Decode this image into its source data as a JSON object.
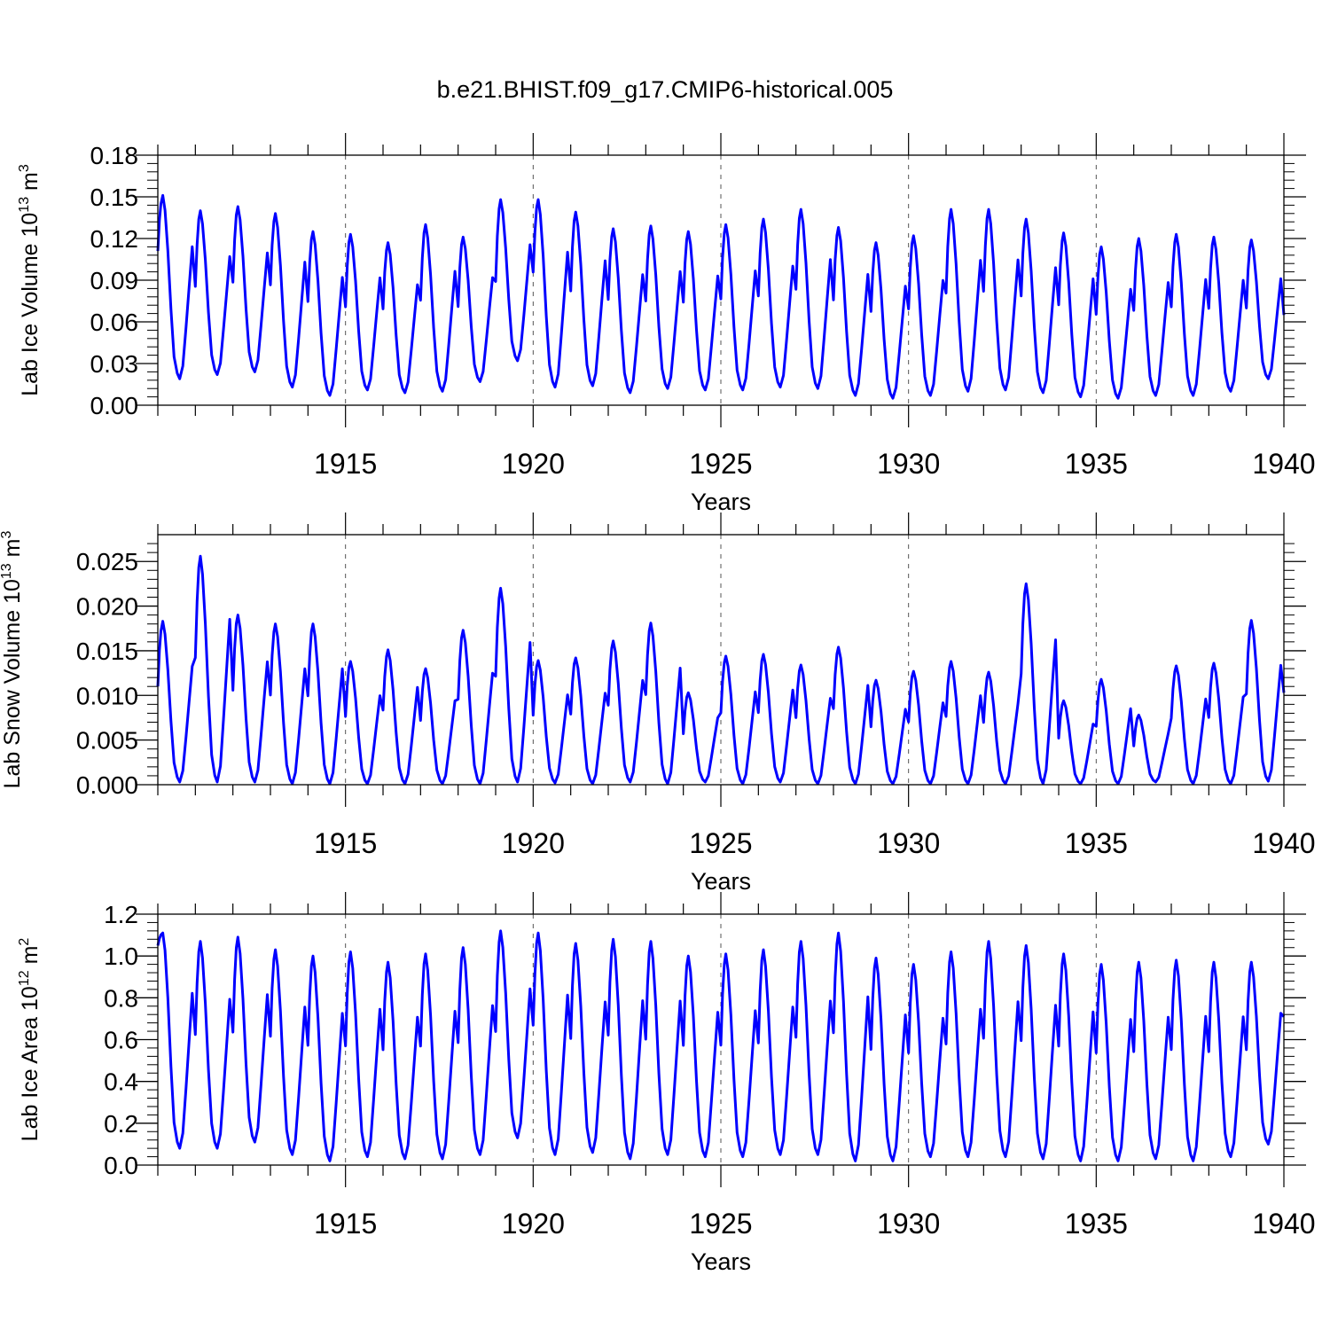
{
  "title": "b.e21.BHIST.f09_g17.CMIP6-historical.005",
  "chart_data": [
    {
      "type": "line",
      "ylabel": "Lab Ice Volume 10",
      "ylabel_exp": "13",
      "ylabel_unit": " m",
      "ylabel_unit_exp": "3",
      "xlabel": "Years",
      "xlim": [
        1910.0,
        1940.0
      ],
      "ylim": [
        0.0,
        0.18
      ],
      "yticks": [
        0.0,
        0.03,
        0.06,
        0.09,
        0.12,
        0.15,
        0.18
      ],
      "ytick_labels": [
        "0.00",
        "0.03",
        "0.06",
        "0.09",
        "0.12",
        "0.15",
        "0.18"
      ],
      "xticks": [
        1915,
        1920,
        1925,
        1930,
        1935,
        1940
      ],
      "xtick_labels": [
        "1915",
        "1920",
        "1925",
        "1930",
        "1935",
        "1940"
      ],
      "color": "#0000ff",
      "peaks": [
        0.151,
        0.14,
        0.143,
        0.138,
        0.125,
        0.123,
        0.117,
        0.13,
        0.121,
        0.148,
        0.148,
        0.139,
        0.127,
        0.129,
        0.125,
        0.13,
        0.134,
        0.141,
        0.128,
        0.117,
        0.122,
        0.141,
        0.141,
        0.134,
        0.124,
        0.114,
        0.12,
        0.123,
        0.121,
        0.119
      ],
      "troughs": [
        0.019,
        0.022,
        0.024,
        0.013,
        0.007,
        0.011,
        0.009,
        0.01,
        0.017,
        0.032,
        0.013,
        0.014,
        0.009,
        0.012,
        0.011,
        0.011,
        0.013,
        0.012,
        0.007,
        0.005,
        0.007,
        0.01,
        0.011,
        0.009,
        0.006,
        0.005,
        0.007,
        0.007,
        0.01,
        0.019
      ],
      "start_value": 0.111,
      "end_value": 0.065,
      "grid": "vertical dashed at major x ticks"
    },
    {
      "type": "line",
      "ylabel": "Lab Snow Volume 10",
      "ylabel_exp": "13",
      "ylabel_unit": " m",
      "ylabel_unit_exp": "3",
      "xlabel": "Years",
      "xlim": [
        1910.0,
        1940.0
      ],
      "ylim": [
        0.0,
        0.028
      ],
      "yticks": [
        0.0,
        0.005,
        0.01,
        0.015,
        0.02,
        0.025
      ],
      "ytick_labels": [
        "0.000",
        "0.005",
        "0.010",
        "0.015",
        "0.020",
        "0.025"
      ],
      "xticks": [
        1915,
        1920,
        1925,
        1930,
        1935,
        1940
      ],
      "xtick_labels": [
        "1915",
        "1920",
        "1925",
        "1930",
        "1935",
        "1940"
      ],
      "color": "#0000ff",
      "peaks": [
        0.0183,
        0.0256,
        0.019,
        0.018,
        0.018,
        0.0138,
        0.0151,
        0.013,
        0.0173,
        0.022,
        0.0139,
        0.0142,
        0.0161,
        0.0181,
        0.0103,
        0.0144,
        0.0146,
        0.0134,
        0.0154,
        0.0117,
        0.0127,
        0.0138,
        0.0126,
        0.0225,
        0.0094,
        0.0118,
        0.0078,
        0.0133,
        0.0136,
        0.0184
      ],
      "troughs": [
        0.0003,
        0.0003,
        0.0003,
        0.0001,
        0.0001,
        0.0001,
        0.0001,
        0.0001,
        0.0001,
        0.0003,
        0.0002,
        0.0001,
        0.0003,
        0.0001,
        0.0003,
        0.0001,
        0.0003,
        0.0001,
        0.0001,
        0.0001,
        0.0001,
        0.0001,
        0.0001,
        0.0001,
        0.0001,
        0.0001,
        0.0003,
        0.0001,
        0.0001,
        0.0004
      ],
      "start_value": 0.011,
      "end_value": 0.0103,
      "grid": "vertical dashed at major x ticks"
    },
    {
      "type": "line",
      "ylabel": "Lab Ice Area 10",
      "ylabel_exp": "12",
      "ylabel_unit": " m",
      "ylabel_unit_exp": "2",
      "xlabel": "Years",
      "xlim": [
        1910.0,
        1940.0
      ],
      "ylim": [
        0.0,
        1.2
      ],
      "yticks": [
        0.0,
        0.2,
        0.4,
        0.6,
        0.8,
        1.0,
        1.2
      ],
      "ytick_labels": [
        "0.0",
        "0.2",
        "0.4",
        "0.6",
        "0.8",
        "1.0",
        "1.2"
      ],
      "xticks": [
        1915,
        1920,
        1925,
        1930,
        1935,
        1940
      ],
      "xtick_labels": [
        "1915",
        "1920",
        "1925",
        "1930",
        "1935",
        "1940"
      ],
      "color": "#0000ff",
      "peaks": [
        1.11,
        1.07,
        1.09,
        1.03,
        1.0,
        1.02,
        0.97,
        1.01,
        1.04,
        1.12,
        1.11,
        1.06,
        1.08,
        1.07,
        1.0,
        1.01,
        1.03,
        1.07,
        1.11,
        0.99,
        0.96,
        1.02,
        1.07,
        1.05,
        1.01,
        0.96,
        0.97,
        0.98,
        0.97,
        0.97
      ],
      "troughs": [
        0.08,
        0.08,
        0.11,
        0.05,
        0.02,
        0.04,
        0.03,
        0.03,
        0.05,
        0.13,
        0.05,
        0.06,
        0.03,
        0.05,
        0.04,
        0.04,
        0.05,
        0.05,
        0.02,
        0.02,
        0.04,
        0.04,
        0.04,
        0.03,
        0.02,
        0.02,
        0.03,
        0.02,
        0.04,
        0.1
      ],
      "start_value": 1.05,
      "end_value": 0.71,
      "grid": "vertical dashed at major x ticks"
    }
  ]
}
